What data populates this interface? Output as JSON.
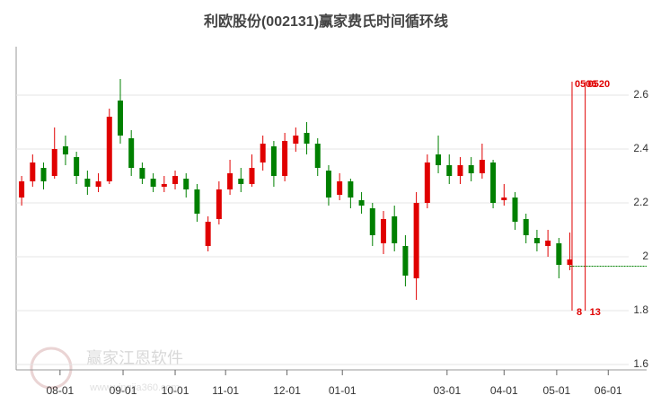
{
  "chart_data": {
    "type": "candlestick",
    "title": "利欧股份(002131)赢家费氏时间循环线",
    "watermark": "赢家江恩软件",
    "watermark_url": "www.yingjia360.com",
    "up_color": "#e00000",
    "down_color": "#008000",
    "open": [
      2.22,
      2.28,
      2.33,
      2.3,
      2.41,
      2.37,
      2.29,
      2.26,
      2.28,
      2.58,
      2.44,
      2.33,
      2.29,
      2.26,
      2.27,
      2.29,
      2.25,
      2.04,
      2.14,
      2.25,
      2.29,
      2.27,
      2.35,
      2.41,
      2.3,
      2.42,
      2.46,
      2.42,
      2.32,
      2.23,
      2.28,
      2.21,
      2.18,
      2.05,
      2.15,
      2.04,
      1.92,
      2.2,
      2.38,
      2.34,
      2.3,
      2.34,
      2.31,
      2.35,
      2.21,
      2.22,
      2.14,
      2.07,
      2.04,
      2.05,
      1.97
    ],
    "high": [
      2.3,
      2.38,
      2.35,
      2.48,
      2.45,
      2.39,
      2.32,
      2.31,
      2.55,
      2.66,
      2.47,
      2.35,
      2.31,
      2.3,
      2.32,
      2.31,
      2.27,
      2.15,
      2.28,
      2.36,
      2.33,
      2.38,
      2.45,
      2.43,
      2.46,
      2.48,
      2.5,
      2.44,
      2.34,
      2.31,
      2.29,
      2.24,
      2.2,
      2.17,
      2.19,
      2.08,
      2.24,
      2.38,
      2.45,
      2.38,
      2.37,
      2.37,
      2.42,
      2.36,
      2.27,
      2.24,
      2.16,
      2.1,
      2.1,
      2.07,
      2.09
    ],
    "low": [
      2.19,
      2.26,
      2.25,
      2.29,
      2.34,
      2.27,
      2.23,
      2.24,
      2.27,
      2.42,
      2.3,
      2.27,
      2.24,
      2.24,
      2.25,
      2.22,
      2.13,
      2.02,
      2.12,
      2.23,
      2.24,
      2.26,
      2.32,
      2.26,
      2.28,
      2.39,
      2.38,
      2.3,
      2.19,
      2.21,
      2.18,
      2.16,
      2.04,
      2.01,
      2.02,
      1.89,
      1.84,
      2.18,
      2.31,
      2.27,
      2.27,
      2.28,
      2.29,
      2.18,
      2.19,
      2.1,
      2.05,
      2.02,
      2.0,
      1.92,
      1.95
    ],
    "close": [
      2.28,
      2.35,
      2.28,
      2.4,
      2.38,
      2.3,
      2.26,
      2.28,
      2.52,
      2.45,
      2.33,
      2.29,
      2.26,
      2.27,
      2.3,
      2.25,
      2.16,
      2.13,
      2.25,
      2.31,
      2.27,
      2.33,
      2.42,
      2.3,
      2.43,
      2.45,
      2.42,
      2.33,
      2.22,
      2.28,
      2.22,
      2.19,
      2.08,
      2.14,
      2.05,
      1.93,
      2.2,
      2.35,
      2.34,
      2.3,
      2.34,
      2.31,
      2.36,
      2.2,
      2.22,
      2.13,
      2.08,
      2.05,
      2.06,
      1.97,
      1.99
    ],
    "ylim": [
      1.58,
      2.78
    ],
    "yticks": [
      {
        "value": 2.6,
        "label": "2.6"
      },
      {
        "value": 2.4,
        "label": "2.4"
      },
      {
        "value": 2.2,
        "label": "2.2"
      },
      2,
      {
        "value": 1.8,
        "label": "1.8"
      },
      {
        "value": 1.6,
        "label": "1.6"
      }
    ],
    "xlim": [
      -0.5,
      57
    ],
    "xticks": [
      {
        "value": 3.5,
        "label": "08-01"
      },
      {
        "value": 9.25,
        "label": "09-01"
      },
      {
        "value": 14,
        "label": "10-01"
      },
      {
        "value": 18.6,
        "label": "11-01"
      },
      {
        "value": 24.2,
        "label": "12-01"
      },
      {
        "value": 29.25,
        "label": "01-01"
      },
      {
        "value": 38.8,
        "label": "03-01"
      },
      {
        "value": 44,
        "label": "04-01"
      },
      {
        "value": 48.8,
        "label": "05-01"
      },
      {
        "value": 53.5,
        "label": "06-01"
      }
    ],
    "grid": true,
    "reference_line": {
      "value": 1.965,
      "color": "#008000"
    },
    "cycle_lines": [
      {
        "x": 50.2,
        "top": 2.65,
        "bottom": 1.8,
        "top_label": "0506",
        "bottom_label": "8"
      },
      {
        "x": 51.4,
        "top": 2.65,
        "bottom": 1.8,
        "top_label": "0520",
        "bottom_label": "13"
      }
    ],
    "cycle_color": "#e00000"
  }
}
